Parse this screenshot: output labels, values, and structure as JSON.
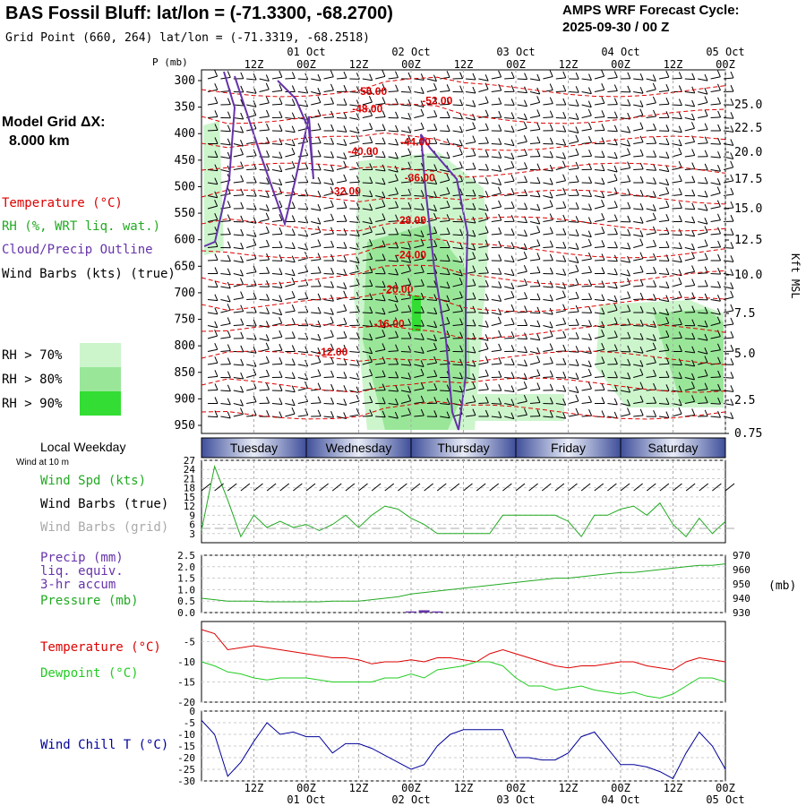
{
  "header": {
    "title": "BAS Fossil Bluff:  lat/lon = (-71.3300, -68.2700)",
    "subtitle": "Grid Point (660, 264) lat/lon = (-71.3319, -68.2518)",
    "cycle_line1": "AMPS WRF Forecast Cycle:",
    "cycle_line2": "2025-09-30 / 00  Z"
  },
  "legend": {
    "model_grid_label": "Model Grid ΔX:",
    "model_grid_value": "8.000 km",
    "temperature": "Temperature (°C)",
    "rh": "RH (%, WRT liq. wat.)",
    "cloud": "Cloud/Precip Outline",
    "wind_barbs": "Wind Barbs (kts) (true)",
    "rh70": "RH > 70%",
    "rh80": "RH > 80%",
    "rh90": "RH > 90%",
    "local_weekday": "Local Weekday",
    "wind_at_10m": "Wind at 10 m",
    "wind_spd": "Wind Spd (kts)",
    "wind_barbs_true": "Wind Barbs (true)",
    "wind_barbs_grid": "Wind Barbs (grid)",
    "precip": "Precip (mm)",
    "precip2": "liq. equiv.",
    "precip3": "3-hr accum",
    "pressure": "Pressure (mb)",
    "temp2": "Temperature (°C)",
    "dewpoint": "Dewpoint (°C)",
    "windchill": "Wind Chill T (°C)",
    "pressure_unit": "(mb)",
    "p_axis_label": "P (mb)",
    "kft_label": "Kft MSL"
  },
  "colors": {
    "temperature": "#dd0000",
    "rh": "#22aa22",
    "cloud": "#6633aa",
    "wind": "#000000",
    "wind_grid": "#aaaaaa",
    "pressure": "#22aa22",
    "precip": "#6633aa",
    "temp_line": "#dd0000",
    "dewpoint_line": "#22cc22",
    "windchill_line": "#000099",
    "rh70": "#ccf5cc",
    "rh80": "#99e699",
    "rh90": "#33dd33",
    "weekday_band": "#3f4f9a"
  },
  "chart_data": [
    {
      "type": "heatmap",
      "name_panel": "cross-section",
      "y_axis_pressure_ticks": [
        "300",
        "350",
        "400",
        "450",
        "500",
        "550",
        "600",
        "650",
        "700",
        "750",
        "800",
        "850",
        "900",
        "950"
      ],
      "y_axis_height_ticks": [
        "25.0",
        "22.5",
        "20.0",
        "17.5",
        "15.0",
        "12.5",
        "10.0",
        "7.5",
        "5.0",
        "2.5",
        "0.75"
      ],
      "top_time_ticks": [
        "12Z",
        "00Z",
        "12Z",
        "00Z",
        "12Z",
        "00Z",
        "12Z",
        "00Z",
        "12Z",
        "00Z"
      ],
      "top_date_ticks": [
        "01 Oct",
        "02 Oct",
        "03 Oct",
        "04 Oct",
        "05 Oct"
      ],
      "temperature_labels": [
        {
          "label": "-56.00",
          "hour": 39,
          "p": 327
        },
        {
          "label": "-52.00",
          "hour": 54,
          "p": 345
        },
        {
          "label": "-48.00",
          "hour": 38,
          "p": 360
        },
        {
          "label": "-44.00",
          "hour": 49,
          "p": 422
        },
        {
          "label": "-40.00",
          "hour": 37,
          "p": 440
        },
        {
          "label": "-36.00",
          "hour": 50,
          "p": 490
        },
        {
          "label": "-32.00",
          "hour": 33,
          "p": 515
        },
        {
          "label": "-28.00",
          "hour": 48,
          "p": 570
        },
        {
          "label": "-24.00",
          "hour": 48,
          "p": 635
        },
        {
          "label": "-20.00",
          "hour": 45,
          "p": 700
        },
        {
          "label": "-16.00",
          "hour": 43,
          "p": 765
        },
        {
          "label": "-12.00",
          "hour": 30,
          "p": 818
        }
      ]
    },
    {
      "type": "line",
      "panel": "wind",
      "ylim": [
        0,
        27
      ],
      "y_ticks": [
        "27",
        "24",
        "21",
        "18",
        "15",
        "12",
        "9",
        "6",
        "3"
      ],
      "x_hours": [
        0,
        3,
        6,
        9,
        12,
        15,
        18,
        21,
        24,
        27,
        30,
        33,
        36,
        39,
        42,
        45,
        48,
        51,
        54,
        57,
        60,
        63,
        66,
        69,
        72,
        75,
        78,
        81,
        84,
        87,
        90,
        93,
        96,
        99,
        102,
        105,
        108,
        111,
        114,
        117,
        120
      ],
      "wind_speed": [
        4,
        25,
        14,
        2,
        9,
        5,
        7,
        5,
        6,
        4,
        6,
        9,
        5,
        9,
        12,
        11,
        8,
        6,
        3,
        3,
        3,
        3,
        3,
        9,
        9,
        9,
        9,
        9,
        7,
        2,
        9,
        9,
        11,
        12,
        9,
        13,
        6,
        2,
        8,
        3,
        7
      ],
      "weekdays": [
        "Tuesday",
        "Wednesday",
        "Thursday",
        "Friday",
        "Saturday"
      ]
    },
    {
      "type": "line",
      "panel": "precip-pressure",
      "precip_ylim": [
        0,
        2.5
      ],
      "precip_ticks": [
        "2.5",
        "2.0",
        "1.5",
        "1.0",
        "0.5",
        "0.0"
      ],
      "pressure_ylim": [
        930,
        970
      ],
      "pressure_ticks": [
        "970",
        "960",
        "950",
        "940",
        "930"
      ],
      "x_hours": [
        0,
        3,
        6,
        9,
        12,
        15,
        18,
        21,
        24,
        27,
        30,
        33,
        36,
        39,
        42,
        45,
        48,
        51,
        54,
        57,
        60,
        63,
        66,
        69,
        72,
        75,
        78,
        81,
        84,
        87,
        90,
        93,
        96,
        99,
        102,
        105,
        108,
        111,
        114,
        117,
        120
      ],
      "pressure": [
        940,
        939,
        938,
        938,
        938,
        937.5,
        937.5,
        937.5,
        937.5,
        937.5,
        938,
        938,
        938,
        939,
        940,
        941,
        943,
        944,
        945,
        946,
        947,
        948,
        949,
        950,
        951,
        952,
        953,
        954,
        954,
        955,
        956,
        957,
        958,
        958,
        959,
        960,
        961,
        962,
        963,
        963,
        964
      ],
      "precip": [
        0,
        0,
        0,
        0,
        0,
        0,
        0,
        0,
        0,
        0,
        0,
        0,
        0,
        0,
        0,
        0,
        0.05,
        0.1,
        0.05,
        0,
        0,
        0,
        0,
        0,
        0,
        0,
        0,
        0,
        0,
        0,
        0,
        0,
        0,
        0,
        0,
        0,
        0,
        0,
        0,
        0,
        0
      ]
    },
    {
      "type": "line",
      "panel": "temperature-dewpoint",
      "ylim": [
        -20,
        0
      ],
      "y_ticks": [
        "-5",
        "-10",
        "-15",
        "-20"
      ],
      "x_hours": [
        0,
        3,
        6,
        9,
        12,
        15,
        18,
        21,
        24,
        27,
        30,
        33,
        36,
        39,
        42,
        45,
        48,
        51,
        54,
        57,
        60,
        63,
        66,
        69,
        72,
        75,
        78,
        81,
        84,
        87,
        90,
        93,
        96,
        99,
        102,
        105,
        108,
        111,
        114,
        117,
        120
      ],
      "temperature": [
        -2,
        -3,
        -7,
        -6.5,
        -6,
        -6.5,
        -7,
        -7.5,
        -8,
        -8.5,
        -9,
        -9,
        -9.5,
        -10.5,
        -10,
        -10,
        -9.5,
        -10,
        -9,
        -9,
        -9.5,
        -10,
        -8,
        -7,
        -8,
        -9,
        -10,
        -11,
        -11.5,
        -11,
        -11,
        -10.5,
        -10,
        -10,
        -11,
        -11.5,
        -12,
        -10,
        -9,
        -9.5,
        -10
      ],
      "dewpoint": [
        -10,
        -11,
        -12.5,
        -13,
        -14,
        -14.5,
        -14,
        -14,
        -14,
        -14.5,
        -15,
        -15,
        -15,
        -15,
        -14,
        -14,
        -13,
        -14,
        -12,
        -11.5,
        -11,
        -10,
        -10,
        -11,
        -14,
        -16,
        -16,
        -17,
        -16.5,
        -16,
        -17,
        -17.5,
        -18,
        -17.5,
        -18.5,
        -19,
        -18,
        -16,
        -14,
        -14,
        -15
      ]
    },
    {
      "type": "line",
      "panel": "wind-chill",
      "ylim": [
        -30,
        0
      ],
      "y_ticks": [
        "0",
        "-5",
        "-10",
        "-15",
        "-20",
        "-25",
        "-30"
      ],
      "x_hours": [
        0,
        3,
        6,
        9,
        12,
        15,
        18,
        21,
        24,
        27,
        30,
        33,
        36,
        39,
        42,
        45,
        48,
        51,
        54,
        57,
        60,
        63,
        66,
        69,
        72,
        75,
        78,
        81,
        84,
        87,
        90,
        93,
        96,
        99,
        102,
        105,
        108,
        111,
        114,
        117,
        120
      ],
      "wind_chill": [
        -4,
        -10,
        -28,
        -22,
        -13,
        -5,
        -10,
        -9,
        -11,
        -11,
        -18,
        -14,
        -14,
        -16,
        -19,
        -22,
        -25,
        -23,
        -15,
        -10,
        -8,
        -8,
        -8,
        -8,
        -20,
        -20,
        -21,
        -21,
        -18,
        -11,
        -9,
        -16,
        -23,
        -23,
        -24,
        -26,
        -29,
        -18,
        -9,
        -15,
        -25
      ],
      "bottom_time_ticks": [
        "12Z",
        "00Z",
        "12Z",
        "00Z",
        "12Z",
        "00Z",
        "12Z",
        "00Z",
        "12Z",
        "00Z"
      ],
      "bottom_date_ticks": [
        "01 Oct",
        "02 Oct",
        "03 Oct",
        "04 Oct",
        "05 Oct"
      ]
    }
  ]
}
